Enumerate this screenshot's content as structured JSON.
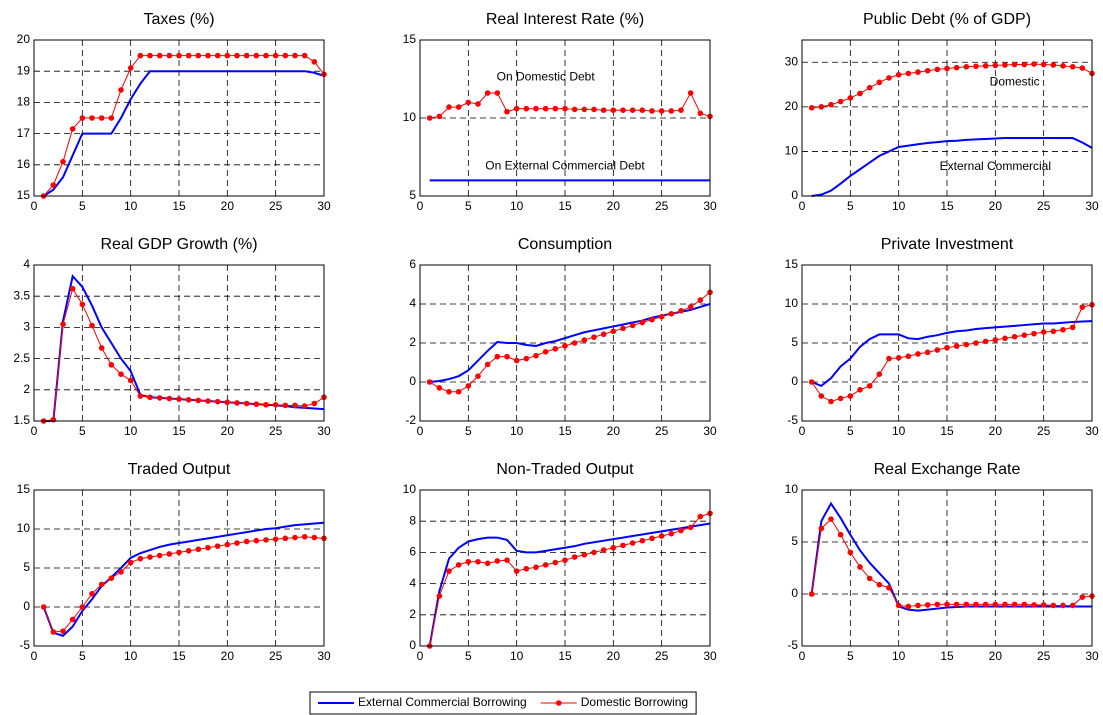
{
  "chart_data": [
    {
      "type": "line",
      "title": "Taxes (%)",
      "x": [
        1,
        2,
        3,
        4,
        5,
        6,
        7,
        8,
        9,
        10,
        11,
        12,
        13,
        14,
        15,
        16,
        17,
        18,
        19,
        20,
        21,
        22,
        23,
        24,
        25,
        26,
        27,
        28,
        29,
        30
      ],
      "xlim": [
        0,
        30
      ],
      "xticks": [
        0,
        5,
        10,
        15,
        20,
        25,
        30
      ],
      "ylim": [
        15,
        20
      ],
      "yticks": [
        15,
        16,
        17,
        18,
        19,
        20
      ],
      "grid": true,
      "series": [
        {
          "color": "#0000ff",
          "markers": false,
          "values": [
            15,
            15.2,
            15.6,
            16.3,
            17,
            17,
            17,
            17,
            17.5,
            18.1,
            18.6,
            19,
            19,
            19,
            19,
            19,
            19,
            19,
            19,
            19,
            19,
            19,
            19,
            19,
            19,
            19,
            19,
            19,
            18.95,
            18.85
          ]
        },
        {
          "color": "#ff0000",
          "markers": true,
          "values": [
            15,
            15.35,
            16.1,
            17.15,
            17.5,
            17.5,
            17.5,
            17.5,
            18.4,
            19.1,
            19.5,
            19.5,
            19.5,
            19.5,
            19.5,
            19.5,
            19.5,
            19.5,
            19.5,
            19.5,
            19.5,
            19.5,
            19.5,
            19.5,
            19.5,
            19.5,
            19.5,
            19.5,
            19.3,
            18.9
          ]
        }
      ]
    },
    {
      "type": "line",
      "title": "Real Interest Rate (%)",
      "x": [
        1,
        2,
        3,
        4,
        5,
        6,
        7,
        8,
        9,
        10,
        11,
        12,
        13,
        14,
        15,
        16,
        17,
        18,
        19,
        20,
        21,
        22,
        23,
        24,
        25,
        26,
        27,
        28,
        29,
        30
      ],
      "xlim": [
        0,
        30
      ],
      "xticks": [
        0,
        5,
        10,
        15,
        20,
        25,
        30
      ],
      "ylim": [
        5,
        15
      ],
      "yticks": [
        5,
        10,
        15
      ],
      "grid": true,
      "annotations": [
        "On Domestic Debt",
        "On External Commercial Debt"
      ],
      "series": [
        {
          "color": "#0000ff",
          "markers": false,
          "values": [
            6,
            6,
            6,
            6,
            6,
            6,
            6,
            6,
            6,
            6,
            6,
            6,
            6,
            6,
            6,
            6,
            6,
            6,
            6,
            6,
            6,
            6,
            6,
            6,
            6,
            6,
            6,
            6,
            6,
            6
          ]
        },
        {
          "color": "#ff0000",
          "markers": true,
          "values": [
            10,
            10.1,
            10.7,
            10.7,
            11,
            10.9,
            11.6,
            11.6,
            10.4,
            10.6,
            10.6,
            10.6,
            10.6,
            10.6,
            10.6,
            10.55,
            10.55,
            10.55,
            10.5,
            10.5,
            10.5,
            10.5,
            10.5,
            10.45,
            10.45,
            10.45,
            10.5,
            11.6,
            10.3,
            10.1
          ]
        }
      ]
    },
    {
      "type": "line",
      "title": "Public Debt (% of GDP)",
      "x": [
        1,
        2,
        3,
        4,
        5,
        6,
        7,
        8,
        9,
        10,
        11,
        12,
        13,
        14,
        15,
        16,
        17,
        18,
        19,
        20,
        21,
        22,
        23,
        24,
        25,
        26,
        27,
        28,
        29,
        30
      ],
      "xlim": [
        0,
        30
      ],
      "xticks": [
        0,
        5,
        10,
        15,
        20,
        25,
        30
      ],
      "ylim": [
        0,
        35
      ],
      "yticks": [
        0,
        10,
        20,
        30
      ],
      "grid": true,
      "annotations": [
        "Domestic",
        "External Commercial"
      ],
      "series": [
        {
          "color": "#0000ff",
          "markers": false,
          "values": [
            0,
            0.3,
            1.2,
            2.8,
            4.5,
            6,
            7.5,
            9,
            10,
            11,
            11.3,
            11.6,
            11.9,
            12.1,
            12.3,
            12.4,
            12.6,
            12.7,
            12.8,
            12.9,
            13,
            13,
            13,
            13,
            13,
            13,
            13,
            13,
            12,
            10.8
          ]
        },
        {
          "color": "#ff0000",
          "markers": true,
          "values": [
            19.8,
            20,
            20.5,
            21.2,
            22,
            23,
            24.3,
            25.5,
            26.5,
            27.2,
            27.5,
            27.8,
            28.1,
            28.4,
            28.6,
            28.8,
            29,
            29.1,
            29.2,
            29.3,
            29.4,
            29.5,
            29.5,
            29.6,
            29.5,
            29.4,
            29.2,
            29,
            28.7,
            27.5
          ]
        }
      ]
    },
    {
      "type": "line",
      "title": "Real GDP Growth (%)",
      "x": [
        1,
        2,
        3,
        4,
        5,
        6,
        7,
        8,
        9,
        10,
        11,
        12,
        13,
        14,
        15,
        16,
        17,
        18,
        19,
        20,
        21,
        22,
        23,
        24,
        25,
        26,
        27,
        28,
        29,
        30
      ],
      "xlim": [
        0,
        30
      ],
      "xticks": [
        0,
        5,
        10,
        15,
        20,
        25,
        30
      ],
      "ylim": [
        1.5,
        4
      ],
      "yticks": [
        1.5,
        2,
        2.5,
        3,
        3.5,
        4
      ],
      "grid": true,
      "series": [
        {
          "color": "#0000ff",
          "markers": false,
          "values": [
            1.5,
            1.5,
            3.1,
            3.82,
            3.65,
            3.35,
            3.0,
            2.75,
            2.5,
            2.3,
            1.92,
            1.88,
            1.87,
            1.86,
            1.85,
            1.84,
            1.83,
            1.82,
            1.81,
            1.8,
            1.79,
            1.78,
            1.77,
            1.76,
            1.75,
            1.74,
            1.72,
            1.71,
            1.7,
            1.69
          ]
        },
        {
          "color": "#ff0000",
          "markers": true,
          "values": [
            1.5,
            1.52,
            3.05,
            3.62,
            3.37,
            3.03,
            2.67,
            2.4,
            2.25,
            2.15,
            1.9,
            1.88,
            1.87,
            1.86,
            1.85,
            1.84,
            1.83,
            1.82,
            1.81,
            1.8,
            1.79,
            1.78,
            1.77,
            1.76,
            1.76,
            1.75,
            1.75,
            1.74,
            1.78,
            1.88
          ]
        }
      ]
    },
    {
      "type": "line",
      "title": "Consumption",
      "x": [
        1,
        2,
        3,
        4,
        5,
        6,
        7,
        8,
        9,
        10,
        11,
        12,
        13,
        14,
        15,
        16,
        17,
        18,
        19,
        20,
        21,
        22,
        23,
        24,
        25,
        26,
        27,
        28,
        29,
        30
      ],
      "xlim": [
        0,
        30
      ],
      "xticks": [
        0,
        5,
        10,
        15,
        20,
        25,
        30
      ],
      "ylim": [
        -2,
        6
      ],
      "yticks": [
        -2,
        0,
        2,
        4,
        6
      ],
      "grid": true,
      "series": [
        {
          "color": "#0000ff",
          "markers": false,
          "values": [
            0,
            0.05,
            0.15,
            0.3,
            0.6,
            1.1,
            1.6,
            2.05,
            2.0,
            2.0,
            1.9,
            1.85,
            2.0,
            2.1,
            2.25,
            2.4,
            2.55,
            2.65,
            2.75,
            2.85,
            2.95,
            3.05,
            3.15,
            3.3,
            3.4,
            3.5,
            3.6,
            3.7,
            3.85,
            4.0
          ]
        },
        {
          "color": "#ff0000",
          "markers": true,
          "values": [
            0,
            -0.3,
            -0.5,
            -0.5,
            -0.2,
            0.3,
            0.9,
            1.3,
            1.3,
            1.1,
            1.2,
            1.35,
            1.55,
            1.7,
            1.85,
            2.0,
            2.15,
            2.3,
            2.45,
            2.6,
            2.75,
            2.9,
            3.05,
            3.2,
            3.35,
            3.5,
            3.65,
            3.85,
            4.2,
            4.6
          ]
        }
      ]
    },
    {
      "type": "line",
      "title": "Private Investment",
      "x": [
        1,
        2,
        3,
        4,
        5,
        6,
        7,
        8,
        9,
        10,
        11,
        12,
        13,
        14,
        15,
        16,
        17,
        18,
        19,
        20,
        21,
        22,
        23,
        24,
        25,
        26,
        27,
        28,
        29,
        30
      ],
      "xlim": [
        0,
        30
      ],
      "xticks": [
        0,
        5,
        10,
        15,
        20,
        25,
        30
      ],
      "ylim": [
        -5,
        15
      ],
      "yticks": [
        -5,
        0,
        5,
        10,
        15
      ],
      "grid": true,
      "series": [
        {
          "color": "#0000ff",
          "markers": false,
          "values": [
            0,
            -0.5,
            0.5,
            2,
            3,
            4.5,
            5.5,
            6.1,
            6.1,
            6.1,
            5.6,
            5.5,
            5.8,
            6,
            6.3,
            6.5,
            6.6,
            6.8,
            6.9,
            7,
            7.1,
            7.2,
            7.3,
            7.4,
            7.5,
            7.5,
            7.6,
            7.7,
            7.75,
            7.8
          ]
        },
        {
          "color": "#ff0000",
          "markers": true,
          "values": [
            0,
            -1.8,
            -2.5,
            -2.1,
            -1.8,
            -1,
            -0.5,
            1,
            3,
            3.1,
            3.3,
            3.6,
            3.8,
            4.1,
            4.4,
            4.6,
            4.8,
            5,
            5.2,
            5.4,
            5.6,
            5.8,
            6,
            6.2,
            6.4,
            6.5,
            6.7,
            7,
            9.6,
            9.9
          ]
        }
      ]
    },
    {
      "type": "line",
      "title": "Traded Output",
      "x": [
        1,
        2,
        3,
        4,
        5,
        6,
        7,
        8,
        9,
        10,
        11,
        12,
        13,
        14,
        15,
        16,
        17,
        18,
        19,
        20,
        21,
        22,
        23,
        24,
        25,
        26,
        27,
        28,
        29,
        30
      ],
      "xlim": [
        0,
        30
      ],
      "xticks": [
        0,
        5,
        10,
        15,
        20,
        25,
        30
      ],
      "ylim": [
        -5,
        15
      ],
      "yticks": [
        -5,
        0,
        5,
        10,
        15
      ],
      "grid": true,
      "series": [
        {
          "color": "#0000ff",
          "markers": false,
          "values": [
            0,
            -3.3,
            -3.7,
            -2.5,
            -0.5,
            1,
            2.7,
            3.8,
            5,
            6.3,
            6.9,
            7.3,
            7.7,
            8,
            8.2,
            8.4,
            8.6,
            8.8,
            9,
            9.2,
            9.4,
            9.6,
            9.8,
            10,
            10.1,
            10.3,
            10.5,
            10.6,
            10.7,
            10.8
          ]
        },
        {
          "color": "#ff0000",
          "markers": true,
          "values": [
            0,
            -3.2,
            -3.1,
            -1.6,
            0,
            1.7,
            2.9,
            3.7,
            4.5,
            5.7,
            6.2,
            6.4,
            6.6,
            6.8,
            7,
            7.2,
            7.4,
            7.6,
            7.8,
            8,
            8.2,
            8.4,
            8.5,
            8.6,
            8.7,
            8.8,
            8.9,
            9,
            8.9,
            8.8
          ]
        }
      ]
    },
    {
      "type": "line",
      "title": "Non-Traded Output",
      "x": [
        1,
        2,
        3,
        4,
        5,
        6,
        7,
        8,
        9,
        10,
        11,
        12,
        13,
        14,
        15,
        16,
        17,
        18,
        19,
        20,
        21,
        22,
        23,
        24,
        25,
        26,
        27,
        28,
        29,
        30
      ],
      "xlim": [
        0,
        30
      ],
      "xticks": [
        0,
        5,
        10,
        15,
        20,
        25,
        30
      ],
      "ylim": [
        0,
        10
      ],
      "yticks": [
        0,
        2,
        4,
        6,
        8,
        10
      ],
      "grid": true,
      "series": [
        {
          "color": "#0000ff",
          "markers": false,
          "values": [
            0,
            3.5,
            5.6,
            6.3,
            6.7,
            6.85,
            6.95,
            6.95,
            6.8,
            6.1,
            6.0,
            6.0,
            6.1,
            6.2,
            6.3,
            6.4,
            6.55,
            6.65,
            6.75,
            6.85,
            6.95,
            7.05,
            7.15,
            7.25,
            7.35,
            7.45,
            7.55,
            7.65,
            7.75,
            7.85
          ]
        },
        {
          "color": "#ff0000",
          "markers": true,
          "values": [
            0,
            3.2,
            4.8,
            5.2,
            5.4,
            5.4,
            5.3,
            5.45,
            5.5,
            4.8,
            4.95,
            5.05,
            5.2,
            5.35,
            5.5,
            5.7,
            5.85,
            6.0,
            6.15,
            6.3,
            6.45,
            6.6,
            6.75,
            6.9,
            7.05,
            7.2,
            7.4,
            7.6,
            8.3,
            8.5
          ]
        }
      ]
    },
    {
      "type": "line",
      "title": "Real Exchange Rate",
      "x": [
        1,
        2,
        3,
        4,
        5,
        6,
        7,
        8,
        9,
        10,
        11,
        12,
        13,
        14,
        15,
        16,
        17,
        18,
        19,
        20,
        21,
        22,
        23,
        24,
        25,
        26,
        27,
        28,
        29,
        30
      ],
      "xlim": [
        0,
        30
      ],
      "xticks": [
        0,
        5,
        10,
        15,
        20,
        25,
        30
      ],
      "ylim": [
        -5,
        10
      ],
      "yticks": [
        -5,
        0,
        5,
        10
      ],
      "grid": true,
      "series": [
        {
          "color": "#0000ff",
          "markers": false,
          "values": [
            0,
            7,
            8.7,
            7.3,
            5.7,
            4.2,
            3,
            2,
            1,
            -1.2,
            -1.5,
            -1.6,
            -1.5,
            -1.4,
            -1.3,
            -1.25,
            -1.2,
            -1.2,
            -1.2,
            -1.2,
            -1.2,
            -1.2,
            -1.2,
            -1.2,
            -1.2,
            -1.2,
            -1.2,
            -1.2,
            -1.2,
            -1.2
          ]
        },
        {
          "color": "#ff0000",
          "markers": true,
          "values": [
            0,
            6.3,
            7.2,
            5.7,
            4,
            2.6,
            1.5,
            0.9,
            0.6,
            -1.1,
            -1.2,
            -1.1,
            -1.05,
            -1.0,
            -1.0,
            -1.0,
            -1.0,
            -1.0,
            -1.0,
            -1.0,
            -1.0,
            -1.0,
            -1.0,
            -1.05,
            -1.05,
            -1.1,
            -1.1,
            -1.1,
            -0.3,
            -0.2
          ]
        }
      ]
    }
  ],
  "legend": [
    "External Commercial Borrowing",
    "Domestic Borrowing"
  ]
}
